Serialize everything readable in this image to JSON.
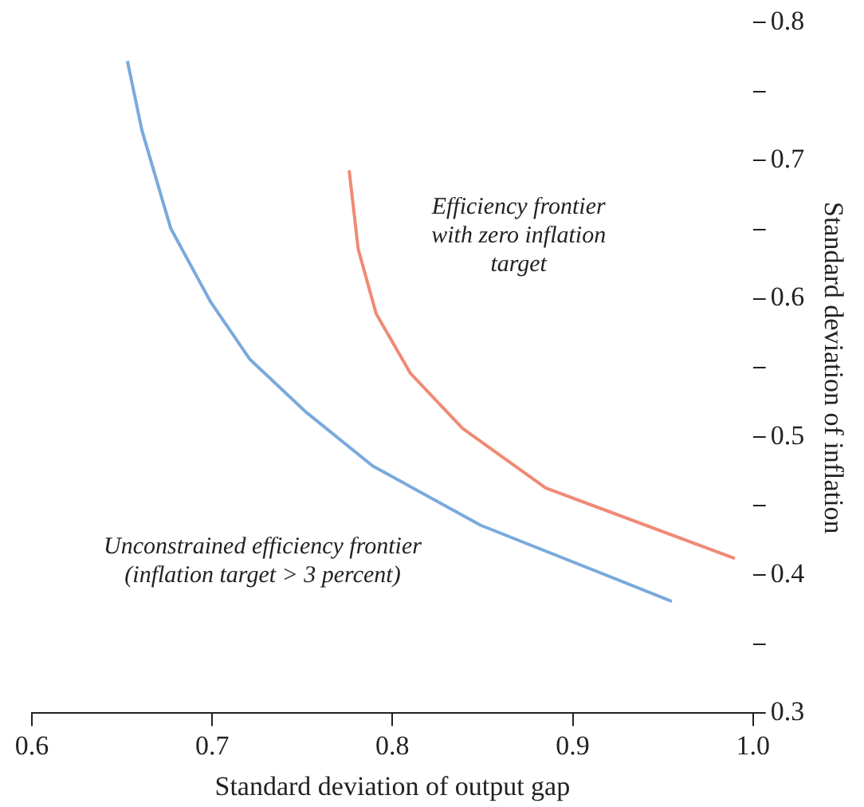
{
  "chart_data": {
    "type": "line",
    "xlabel": "Standard deviation of output gap",
    "ylabel": "Standard deviation of inflation",
    "xlim": [
      0.6,
      1.0
    ],
    "xticks": [
      0.6,
      0.7,
      0.8,
      0.9,
      {
        "value": 1,
        "label": "1.0"
      }
    ],
    "ylim": [
      0.3,
      0.8
    ],
    "yticks": [
      0.3,
      {
        "value": 0.35,
        "label": null
      },
      0.4,
      {
        "value": 0.45,
        "label": null
      },
      0.5,
      {
        "value": 0.55,
        "label": null
      },
      0.6,
      {
        "value": 0.65,
        "label": null
      },
      0.7,
      {
        "value": 0.75,
        "label": null
      },
      0.8
    ],
    "grid": false,
    "legend": false,
    "marker": "none",
    "line_style": "solid",
    "series": [
      {
        "color": "#7aaadc",
        "x": [
          0.653,
          0.661,
          0.677,
          0.699,
          0.721,
          0.752,
          0.789,
          0.849,
          0.955
        ],
        "values": [
          0.772,
          0.722,
          0.651,
          0.598,
          0.556,
          0.518,
          0.479,
          0.436,
          0.381
        ]
      },
      {
        "color": "#f08a75",
        "x": [
          0.776,
          0.781,
          0.791,
          0.81,
          0.839,
          0.885,
          0.99
        ],
        "values": [
          0.693,
          0.636,
          0.589,
          0.546,
          0.506,
          0.463,
          0.412
        ]
      }
    ],
    "annotations": [
      "Efficiency frontier\nwith zero inflation\ntarget",
      "Unconstrained efficiency frontier\n(inflation target > 3 percent)"
    ]
  }
}
